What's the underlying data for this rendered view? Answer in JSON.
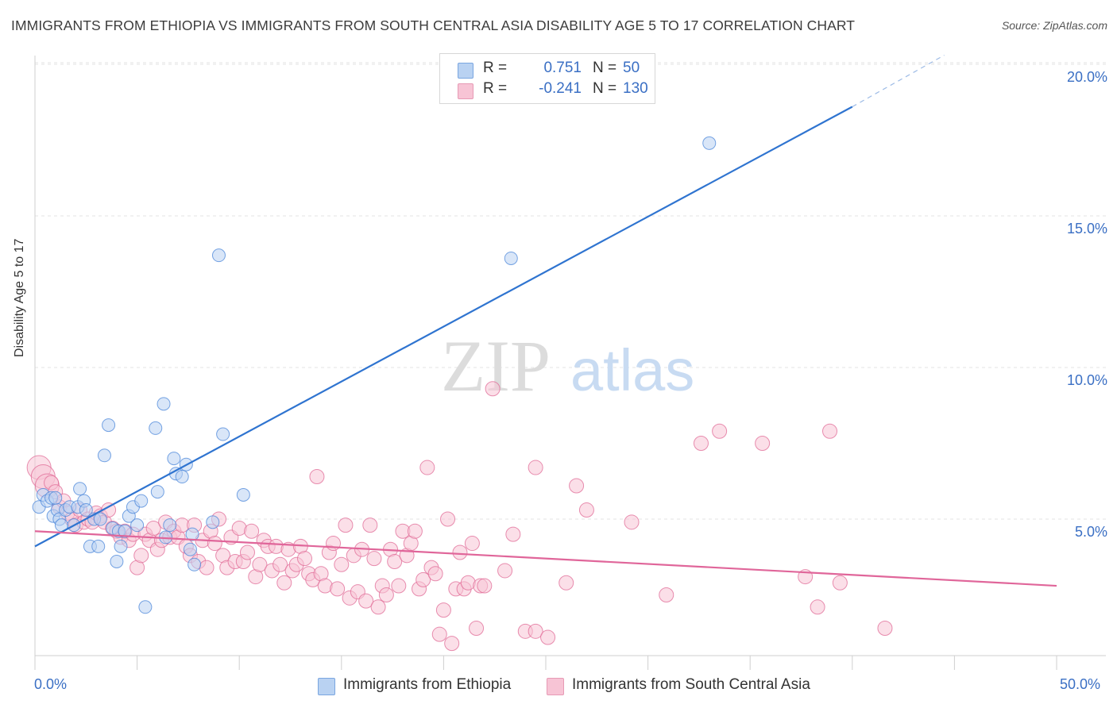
{
  "title": "IMMIGRANTS FROM ETHIOPIA VS IMMIGRANTS FROM SOUTH CENTRAL ASIA DISABILITY AGE 5 TO 17 CORRELATION CHART",
  "source": "Source: ZipAtlas.com",
  "watermark": {
    "zip": "ZIP",
    "atlas": "atlas"
  },
  "legend_top": {
    "r_label": "R =",
    "n_label": "N =",
    "rows": [
      {
        "r": "0.751",
        "n": "50",
        "color": "#aac8f0"
      },
      {
        "r": "-0.241",
        "n": "130",
        "color": "#f7b6cb"
      }
    ]
  },
  "chart_data": {
    "type": "scatter",
    "title": "IMMIGRANTS FROM ETHIOPIA VS IMMIGRANTS FROM SOUTH CENTRAL ASIA DISABILITY AGE 5 TO 17 CORRELATION CHART",
    "xlabel": "",
    "ylabel": "Disability Age 5 to 17",
    "xlim": [
      0,
      50
    ],
    "ylim": [
      0,
      20.5
    ],
    "x_tick_labels": [
      "0.0%",
      "50.0%"
    ],
    "y_ticks": [
      5,
      10,
      15,
      20
    ],
    "y_tick_labels": [
      "5.0%",
      "10.0%",
      "15.0%",
      "20.0%"
    ],
    "grid": true,
    "legend_position": "bottom",
    "series": [
      {
        "name": "Immigrants from Ethiopia",
        "color": "#4a86d9",
        "fill": "#b9d2f2",
        "trend": {
          "x": [
            0,
            40
          ],
          "y": [
            4.1,
            18.6
          ],
          "dashed_to": [
            44.5,
            20.3
          ]
        },
        "points": [
          [
            0.2,
            5.4
          ],
          [
            0.4,
            5.8
          ],
          [
            0.6,
            5.6
          ],
          [
            0.8,
            5.7
          ],
          [
            0.9,
            5.1
          ],
          [
            1.1,
            5.3
          ],
          [
            1.2,
            5.0
          ],
          [
            1.3,
            4.8
          ],
          [
            1.5,
            5.3
          ],
          [
            1.7,
            5.4
          ],
          [
            1.9,
            4.8
          ],
          [
            2.1,
            5.4
          ],
          [
            2.2,
            6.0
          ],
          [
            2.4,
            5.6
          ],
          [
            2.5,
            5.3
          ],
          [
            2.7,
            4.1
          ],
          [
            2.9,
            5.0
          ],
          [
            3.1,
            4.1
          ],
          [
            3.2,
            5.0
          ],
          [
            3.4,
            7.1
          ],
          [
            3.6,
            8.1
          ],
          [
            3.8,
            4.7
          ],
          [
            4.0,
            3.6
          ],
          [
            4.1,
            4.6
          ],
          [
            4.2,
            4.1
          ],
          [
            4.4,
            4.6
          ],
          [
            4.6,
            5.1
          ],
          [
            4.8,
            5.4
          ],
          [
            5.0,
            4.8
          ],
          [
            5.2,
            5.6
          ],
          [
            5.4,
            2.1
          ],
          [
            5.9,
            8.0
          ],
          [
            6.0,
            5.9
          ],
          [
            6.3,
            8.8
          ],
          [
            6.4,
            4.4
          ],
          [
            6.6,
            4.8
          ],
          [
            6.8,
            7.0
          ],
          [
            6.9,
            6.5
          ],
          [
            7.2,
            6.4
          ],
          [
            7.4,
            6.8
          ],
          [
            7.6,
            4.0
          ],
          [
            7.8,
            3.5
          ],
          [
            7.7,
            4.5
          ],
          [
            8.7,
            4.9
          ],
          [
            9.0,
            13.7
          ],
          [
            9.2,
            7.8
          ],
          [
            10.2,
            5.8
          ],
          [
            23.3,
            13.6
          ],
          [
            33.0,
            17.4
          ],
          [
            1.0,
            5.7
          ]
        ]
      },
      {
        "name": "Immigrants from South Central Asia",
        "color": "#e06a95",
        "fill": "#f7c4d5",
        "trend": {
          "x": [
            0,
            50
          ],
          "y": [
            4.6,
            2.8
          ]
        },
        "points": [
          [
            0.2,
            6.7
          ],
          [
            0.4,
            6.4
          ],
          [
            0.6,
            6.1
          ],
          [
            0.8,
            6.2
          ],
          [
            1.0,
            5.9
          ],
          [
            1.2,
            5.4
          ],
          [
            1.4,
            5.6
          ],
          [
            1.6,
            5.2
          ],
          [
            1.8,
            5.0
          ],
          [
            2.0,
            4.8
          ],
          [
            2.2,
            5.3
          ],
          [
            2.4,
            4.9
          ],
          [
            2.6,
            5.0
          ],
          [
            2.8,
            4.9
          ],
          [
            3.0,
            5.2
          ],
          [
            3.2,
            5.1
          ],
          [
            3.4,
            4.9
          ],
          [
            3.6,
            5.3
          ],
          [
            3.8,
            4.7
          ],
          [
            4.0,
            4.6
          ],
          [
            4.2,
            4.4
          ],
          [
            4.4,
            4.6
          ],
          [
            4.6,
            4.3
          ],
          [
            4.8,
            4.5
          ],
          [
            5.0,
            3.4
          ],
          [
            5.2,
            3.8
          ],
          [
            5.4,
            4.5
          ],
          [
            5.6,
            4.3
          ],
          [
            5.8,
            4.7
          ],
          [
            6.0,
            4.0
          ],
          [
            6.2,
            4.3
          ],
          [
            6.4,
            4.9
          ],
          [
            6.6,
            4.4
          ],
          [
            6.8,
            4.6
          ],
          [
            7.0,
            4.4
          ],
          [
            7.2,
            4.8
          ],
          [
            7.4,
            4.1
          ],
          [
            7.6,
            3.8
          ],
          [
            7.8,
            4.8
          ],
          [
            8.0,
            3.6
          ],
          [
            8.2,
            4.3
          ],
          [
            8.4,
            3.4
          ],
          [
            8.6,
            4.6
          ],
          [
            8.8,
            4.2
          ],
          [
            9.0,
            5.0
          ],
          [
            9.2,
            3.8
          ],
          [
            9.4,
            3.4
          ],
          [
            9.6,
            4.4
          ],
          [
            9.8,
            3.6
          ],
          [
            10.0,
            4.7
          ],
          [
            10.2,
            3.6
          ],
          [
            10.4,
            3.9
          ],
          [
            10.6,
            4.6
          ],
          [
            10.8,
            3.1
          ],
          [
            11.0,
            3.5
          ],
          [
            11.2,
            4.3
          ],
          [
            11.4,
            4.1
          ],
          [
            11.6,
            3.3
          ],
          [
            11.8,
            4.1
          ],
          [
            12.0,
            3.5
          ],
          [
            12.2,
            2.9
          ],
          [
            12.4,
            4.0
          ],
          [
            12.6,
            3.3
          ],
          [
            12.8,
            3.5
          ],
          [
            13.0,
            4.1
          ],
          [
            13.2,
            3.7
          ],
          [
            13.4,
            3.2
          ],
          [
            13.6,
            3.0
          ],
          [
            13.8,
            6.4
          ],
          [
            14.0,
            3.2
          ],
          [
            14.2,
            2.8
          ],
          [
            14.4,
            3.9
          ],
          [
            14.6,
            4.2
          ],
          [
            14.8,
            2.7
          ],
          [
            15.0,
            3.5
          ],
          [
            15.2,
            4.8
          ],
          [
            15.4,
            2.4
          ],
          [
            15.6,
            3.8
          ],
          [
            15.8,
            2.6
          ],
          [
            16.0,
            4.0
          ],
          [
            16.2,
            2.3
          ],
          [
            16.4,
            4.8
          ],
          [
            16.6,
            3.7
          ],
          [
            16.8,
            2.1
          ],
          [
            17.0,
            2.8
          ],
          [
            17.2,
            2.5
          ],
          [
            17.4,
            4.0
          ],
          [
            17.6,
            3.6
          ],
          [
            17.8,
            2.8
          ],
          [
            18.0,
            4.6
          ],
          [
            18.2,
            3.8
          ],
          [
            18.4,
            4.2
          ],
          [
            18.6,
            4.6
          ],
          [
            18.8,
            2.7
          ],
          [
            19.0,
            3.0
          ],
          [
            19.2,
            6.7
          ],
          [
            19.4,
            3.4
          ],
          [
            19.6,
            3.2
          ],
          [
            19.8,
            1.2
          ],
          [
            20.0,
            2.0
          ],
          [
            20.2,
            5.0
          ],
          [
            20.4,
            0.9
          ],
          [
            20.6,
            2.7
          ],
          [
            20.8,
            3.9
          ],
          [
            21.0,
            2.7
          ],
          [
            21.2,
            2.9
          ],
          [
            21.4,
            4.2
          ],
          [
            21.6,
            1.4
          ],
          [
            21.8,
            2.8
          ],
          [
            22.0,
            2.8
          ],
          [
            22.4,
            9.3
          ],
          [
            23.0,
            3.3
          ],
          [
            23.4,
            4.5
          ],
          [
            24.0,
            1.3
          ],
          [
            24.5,
            6.7
          ],
          [
            24.5,
            1.3
          ],
          [
            25.1,
            1.1
          ],
          [
            26.0,
            2.9
          ],
          [
            26.5,
            6.1
          ],
          [
            27.0,
            5.3
          ],
          [
            29.2,
            4.9
          ],
          [
            30.9,
            2.5
          ],
          [
            32.6,
            7.5
          ],
          [
            33.5,
            7.9
          ],
          [
            35.6,
            7.5
          ],
          [
            37.7,
            3.1
          ],
          [
            38.3,
            2.1
          ],
          [
            39.4,
            2.9
          ],
          [
            38.9,
            7.9
          ],
          [
            41.6,
            1.4
          ]
        ]
      }
    ]
  },
  "legend_bottom": [
    {
      "label": "Immigrants from Ethiopia",
      "color": "#aac8f0"
    },
    {
      "label": "Immigrants from South Central Asia",
      "color": "#f7b6cb"
    }
  ]
}
